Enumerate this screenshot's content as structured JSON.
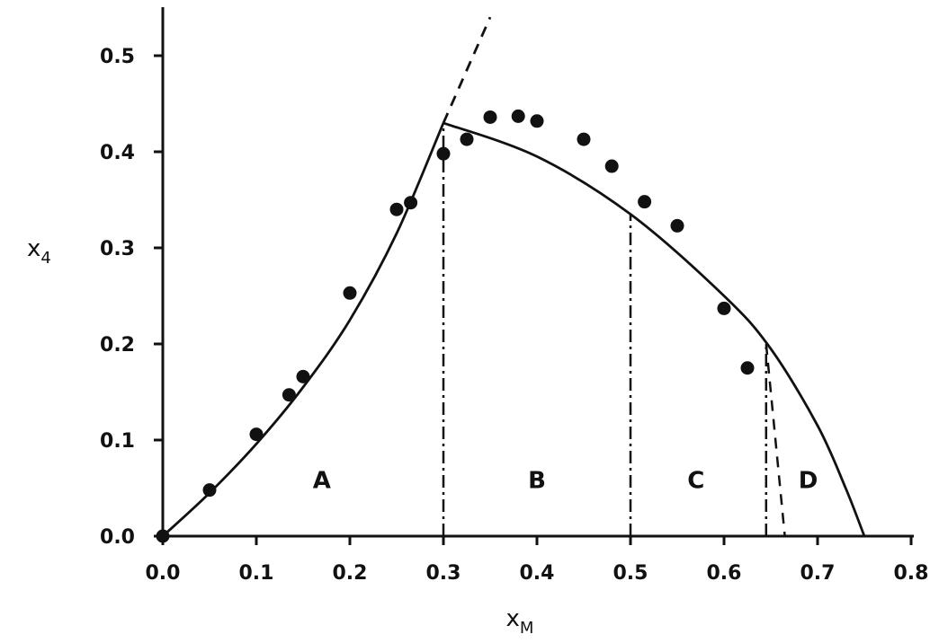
{
  "chart_data": {
    "type": "scatter",
    "xlabel": "x",
    "xlabel_sub": "M",
    "ylabel": "x",
    "ylabel_sub": "4",
    "xlim": [
      0.0,
      0.8
    ],
    "ylim": [
      0.0,
      0.5
    ],
    "x_ticks": [
      "0.0",
      "0.1",
      "0.2",
      "0.3",
      "0.4",
      "0.5",
      "0.6",
      "0.7",
      "0.8"
    ],
    "y_ticks": [
      "0.0",
      "0.1",
      "0.2",
      "0.3",
      "0.4",
      "0.5"
    ],
    "grid": false,
    "points": [
      [
        0.0,
        0.0
      ],
      [
        0.05,
        0.048
      ],
      [
        0.1,
        0.106
      ],
      [
        0.135,
        0.147
      ],
      [
        0.15,
        0.166
      ],
      [
        0.2,
        0.253
      ],
      [
        0.25,
        0.34
      ],
      [
        0.265,
        0.347
      ],
      [
        0.3,
        0.398
      ],
      [
        0.325,
        0.413
      ],
      [
        0.35,
        0.436
      ],
      [
        0.38,
        0.437
      ],
      [
        0.4,
        0.432
      ],
      [
        0.45,
        0.413
      ],
      [
        0.48,
        0.385
      ],
      [
        0.515,
        0.348
      ],
      [
        0.55,
        0.323
      ],
      [
        0.6,
        0.237
      ],
      [
        0.625,
        0.175
      ]
    ],
    "curves": [
      {
        "style": "solid",
        "x": [
          0.0,
          0.05,
          0.1,
          0.15,
          0.2,
          0.25,
          0.3
        ],
        "y": [
          0.0,
          0.045,
          0.096,
          0.155,
          0.225,
          0.315,
          0.43
        ]
      },
      {
        "style": "dashed",
        "x": [
          0.3,
          0.35
        ],
        "y": [
          0.43,
          0.54
        ]
      },
      {
        "style": "solid",
        "x": [
          0.3,
          0.4,
          0.5,
          0.6,
          0.65,
          0.7,
          0.73,
          0.75
        ],
        "y": [
          0.43,
          0.395,
          0.335,
          0.25,
          0.195,
          0.115,
          0.05,
          0.0
        ]
      }
    ],
    "boundaries": [
      {
        "style": "dashdot",
        "x": [
          0.3,
          0.3
        ],
        "y": [
          0.0,
          0.43
        ]
      },
      {
        "style": "dashdot",
        "x": [
          0.5,
          0.5
        ],
        "y": [
          0.0,
          0.335
        ]
      },
      {
        "style": "dashdot",
        "x": [
          0.645,
          0.645
        ],
        "y": [
          0.0,
          0.2
        ]
      },
      {
        "style": "dashed",
        "x": [
          0.645,
          0.665
        ],
        "y": [
          0.2,
          0.0
        ]
      }
    ],
    "regions": [
      {
        "label": "A",
        "x": 0.17,
        "y": 0.05
      },
      {
        "label": "B",
        "x": 0.4,
        "y": 0.05
      },
      {
        "label": "C",
        "x": 0.57,
        "y": 0.05
      },
      {
        "label": "D",
        "x": 0.69,
        "y": 0.05
      }
    ]
  }
}
